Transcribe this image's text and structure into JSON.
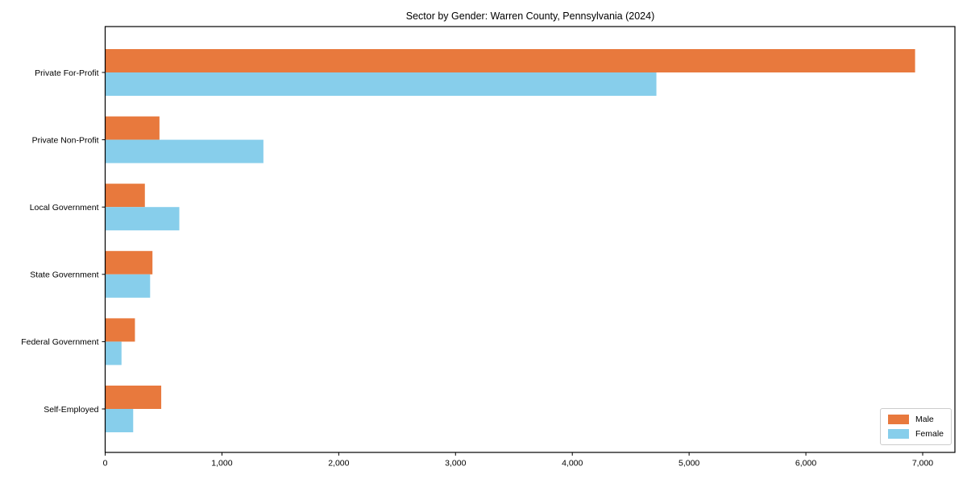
{
  "chart_data": {
    "type": "bar",
    "orientation": "horizontal",
    "title": "Sector by Gender: Warren County, Pennsylvania (2024)",
    "categories": [
      "Private For-Profit",
      "Private Non-Profit",
      "Local Government",
      "State Government",
      "Federal Government",
      "Self-Employed"
    ],
    "series": [
      {
        "name": "Male",
        "color": "#e8793d",
        "values": [
          6935,
          465,
          340,
          405,
          255,
          480
        ]
      },
      {
        "name": "Female",
        "color": "#87ceeb",
        "values": [
          4720,
          1355,
          635,
          385,
          140,
          240
        ]
      }
    ],
    "xlabel": "",
    "ylabel": "",
    "xlim": [
      0,
      7276
    ],
    "xticks": [
      0,
      1000,
      2000,
      3000,
      4000,
      5000,
      6000,
      7000
    ],
    "xtick_labels": [
      "0",
      "1,000",
      "2,000",
      "3,000",
      "4,000",
      "5,000",
      "6,000",
      "7,000"
    ],
    "grid": false,
    "background_color": "#ffffff",
    "spine_color": "#000000",
    "legend": {
      "position": "lower right",
      "entries": [
        "Male",
        "Female"
      ]
    }
  }
}
